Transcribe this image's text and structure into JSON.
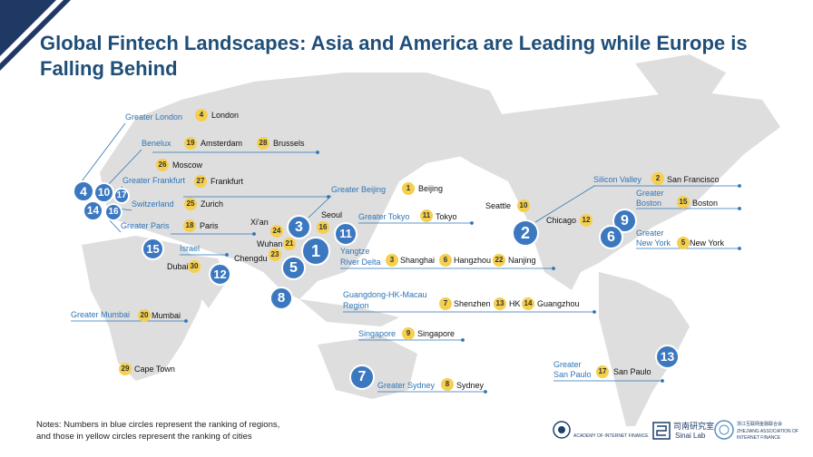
{
  "title": "Global Fintech Landscapes: Asia and America are Leading while Europe is Falling Behind",
  "notes": [
    "Notes: Numbers in blue circles represent the ranking of regions,",
    "and those in yellow circles represent the ranking of cities"
  ],
  "colors": {
    "title": "#1f4e79",
    "region_text": "#2e75b6",
    "blue_circle": "#3c78c0",
    "yellow_circle": "#f5cf4e",
    "land": "#dcdcdc"
  },
  "regions": [
    {
      "label": "Greater London"
    },
    {
      "label": "Benelux"
    },
    {
      "label": "Greater Frankfurt"
    },
    {
      "label": "Switzerland"
    },
    {
      "label": "Greater Paris"
    },
    {
      "label": "Israel"
    },
    {
      "label": "Greater Mumbai"
    },
    {
      "label": "Greater Beijing"
    },
    {
      "label": "Greater Tokyo"
    },
    {
      "label": "Yangtze"
    },
    {
      "label": "River Delta"
    },
    {
      "label": "Guangdong-HK-Macau"
    },
    {
      "label": "Region"
    },
    {
      "label": "Singapore"
    },
    {
      "label": "Greater Sydney"
    },
    {
      "label": "Silicon Valley"
    },
    {
      "label": "Greater"
    },
    {
      "label": "Boston"
    },
    {
      "label": "Greater"
    },
    {
      "label": "New York"
    },
    {
      "label": "Greater"
    },
    {
      "label": "San Paulo"
    }
  ],
  "cities": [
    {
      "rank": "4",
      "name": "London"
    },
    {
      "rank": "19",
      "name": "Amsterdam"
    },
    {
      "rank": "28",
      "name": "Brussels"
    },
    {
      "rank": "26",
      "name": "Moscow"
    },
    {
      "rank": "27",
      "name": "Frankfurt"
    },
    {
      "rank": "25",
      "name": "Zurich"
    },
    {
      "rank": "18",
      "name": "Paris"
    },
    {
      "rank": "30",
      "name": "Dubai"
    },
    {
      "rank": "20",
      "name": "Mumbai"
    },
    {
      "rank": "29",
      "name": "Cape Town"
    },
    {
      "rank": "1",
      "name": "Beijing"
    },
    {
      "rank": "16",
      "name": "Seoul"
    },
    {
      "rank": "11",
      "name": "Tokyo"
    },
    {
      "rank": "24",
      "name": "Xi'an"
    },
    {
      "rank": "21",
      "name": "Wuhan"
    },
    {
      "rank": "23",
      "name": "Chengdu"
    },
    {
      "rank": "3",
      "name": "Shanghai"
    },
    {
      "rank": "6",
      "name": "Hangzhou"
    },
    {
      "rank": "22",
      "name": "Nanjing"
    },
    {
      "rank": "7",
      "name": "Shenzhen"
    },
    {
      "rank": "13",
      "name": "HK"
    },
    {
      "rank": "14",
      "name": "Guangzhou"
    },
    {
      "rank": "9",
      "name": "Singapore"
    },
    {
      "rank": "8",
      "name": "Sydney"
    },
    {
      "rank": "2",
      "name": "San Francisco"
    },
    {
      "rank": "10",
      "name": "Seattle"
    },
    {
      "rank": "12",
      "name": "Chicago"
    },
    {
      "rank": "15",
      "name": "Boston"
    },
    {
      "rank": "5",
      "name": "New York"
    },
    {
      "rank": "17",
      "name": "San Paulo"
    }
  ],
  "blue_ranks": [
    "4",
    "10",
    "17",
    "14",
    "16",
    "15",
    "12",
    "8",
    "3",
    "11",
    "1",
    "5",
    "7",
    "2",
    "9",
    "6",
    "13"
  ],
  "logos": {
    "zju": "ACADEMY OF INTERNET FINANCE",
    "sinai_cn": "司南研究室",
    "sinai_en": "Sinai Lab",
    "assoc_cn": "浙江互联网金融联合会",
    "assoc_en": "ZHEJIANG ASSOCIATION OF",
    "assoc_en2": "INTERNET FINANCE"
  }
}
